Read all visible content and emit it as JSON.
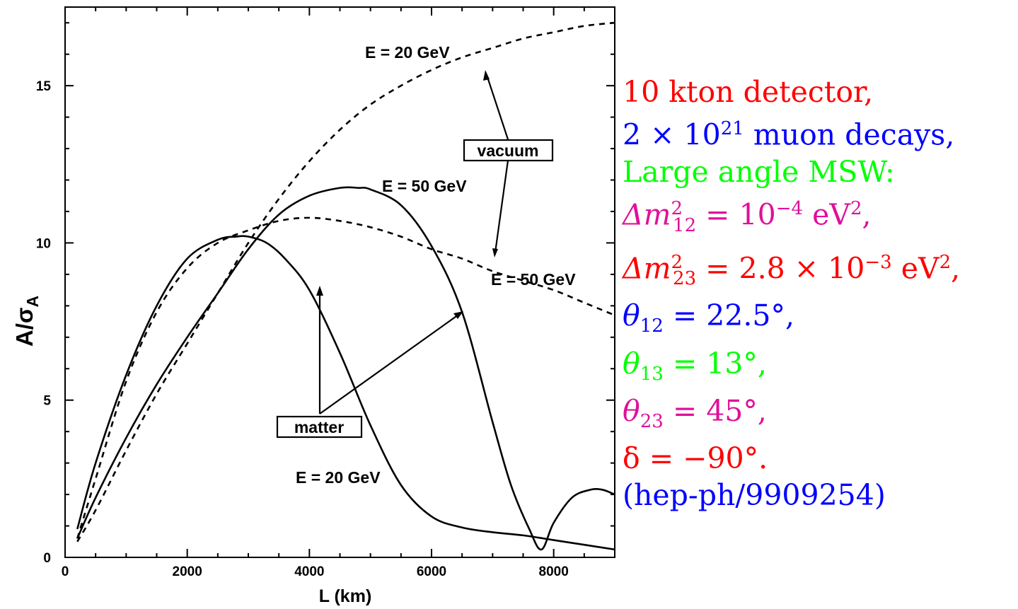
{
  "chart_data": {
    "type": "line",
    "xlabel": "L (km)",
    "ylabel": "A/σA",
    "xlim": [
      0,
      9000
    ],
    "ylim": [
      0,
      17.5
    ],
    "x_ticks": [
      "0",
      "2000",
      "4000",
      "6000",
      "8000"
    ],
    "y_ticks": [
      "0",
      "5",
      "10",
      "15"
    ],
    "series": [
      {
        "style": "solid",
        "x": [
          200,
          500,
          1000,
          1500,
          2000,
          2500,
          2800,
          3000,
          3300,
          3600,
          4000,
          4500,
          5000,
          5500,
          6000,
          6500,
          7000,
          7500,
          8000,
          8500,
          9000
        ],
        "y": [
          0.9,
          3.0,
          5.8,
          8.0,
          9.5,
          10.1,
          10.2,
          10.2,
          10.0,
          9.5,
          8.5,
          6.5,
          4.2,
          2.3,
          1.3,
          0.95,
          0.8,
          0.7,
          0.55,
          0.4,
          0.25
        ]
      },
      {
        "style": "dashed",
        "x": [
          200,
          500,
          1000,
          1500,
          2000,
          2500,
          3000,
          3500,
          4000,
          4500,
          5000,
          5500,
          6000,
          6500,
          7000,
          7500,
          8000,
          8500,
          9000
        ],
        "y": [
          0.6,
          2.5,
          5.6,
          7.8,
          9.2,
          10.0,
          10.4,
          10.7,
          10.8,
          10.7,
          10.5,
          10.2,
          9.8,
          9.5,
          9.1,
          8.8,
          8.5,
          8.1,
          7.7
        ]
      },
      {
        "style": "solid",
        "x": [
          200,
          500,
          1000,
          1500,
          2000,
          2500,
          3000,
          3500,
          4000,
          4500,
          4800,
          5000,
          5500,
          6000,
          6500,
          7000,
          7300,
          7600,
          7800,
          8000,
          8300,
          8600,
          8800,
          9000
        ],
        "y": [
          0.6,
          1.9,
          3.8,
          5.5,
          7.0,
          8.4,
          9.8,
          10.9,
          11.5,
          11.75,
          11.75,
          11.7,
          11.2,
          9.9,
          7.8,
          4.3,
          2.3,
          0.9,
          0.25,
          1.1,
          1.9,
          2.15,
          2.15,
          2.0
        ]
      },
      {
        "style": "dashed",
        "x": [
          200,
          500,
          1000,
          1500,
          2000,
          2500,
          3000,
          3500,
          4000,
          4500,
          5000,
          5500,
          6000,
          6500,
          7000,
          7500,
          8000,
          8500,
          9000
        ],
        "y": [
          0.5,
          1.5,
          3.4,
          5.2,
          6.8,
          8.4,
          10.0,
          11.4,
          12.6,
          13.6,
          14.4,
          15.0,
          15.5,
          15.9,
          16.2,
          16.5,
          16.7,
          16.9,
          17.0
        ]
      }
    ],
    "annotations": {
      "vacuum_20": "E = 20 GeV",
      "vacuum_50": "E = 50 GeV",
      "dashed_50": "E = 50 GeV",
      "matter_20": "E = 20 GeV",
      "vacuum_box": "vacuum",
      "matter_box": "matter"
    }
  },
  "params_text": {
    "line1": "10 kton detector,",
    "line2_pre": "2 × 10",
    "line2_sup": "21",
    "line2_post": " muon decays,",
    "line3": "Large angle MSW:",
    "line4_pre": "Δm",
    "line4_sup": "2",
    "line4_sub": "12",
    "line4_post": " = 10",
    "line4_exp": "−4",
    "line4_unit": " eV",
    "line4_unit_sup": "2",
    "line4_end": ",",
    "line5_pre": "Δm",
    "line5_sup": "2",
    "line5_sub": "23",
    "line5_post": " = 2.8 × 10",
    "line5_exp": "−3",
    "line5_unit": " eV",
    "line5_unit_sup": "2",
    "line5_end": ",",
    "line6_pre": "θ",
    "line6_sub": "12",
    "line6_post": " = 22.5°,",
    "line7_pre": "θ",
    "line7_sub": "13",
    "line7_post": " = 13°,",
    "line8_pre": "θ",
    "line8_sub": "23",
    "line8_post": " = 45°,",
    "line9": "δ = −90°.",
    "line10": "(hep-ph/9909254)"
  },
  "colors": {
    "red": "#ff0000",
    "blue": "#0000ff",
    "green": "#00ff00",
    "magenta": "#e0109a"
  }
}
